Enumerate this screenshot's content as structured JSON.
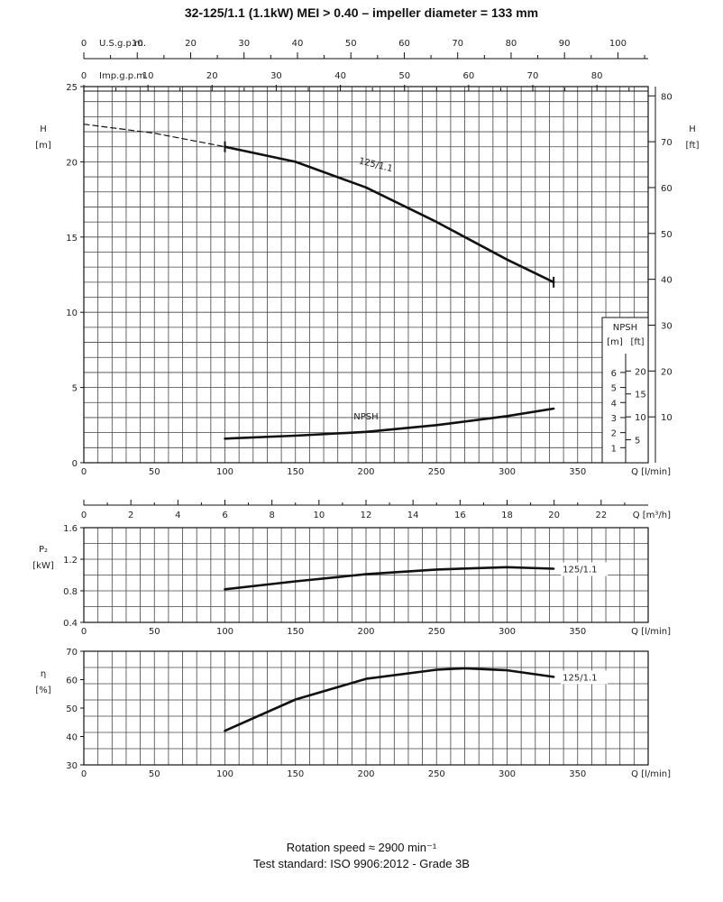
{
  "title": "32-125/1.1 (1.1kW) MEI > 0.40 – impeller diameter = 133 mm",
  "footer": {
    "rotation": "Rotation speed ≈ 2900 min⁻¹",
    "standard": "Test standard: ISO 9906:2012 - Grade 3B"
  },
  "chart_data": [
    {
      "id": "head",
      "type": "line",
      "xlabel": "Q [l/min]",
      "ylabel": "H [m]",
      "ylabel_right": "H [ft]",
      "xlim": [
        0,
        400
      ],
      "ylim": [
        0,
        25
      ],
      "x_ticks": [
        0,
        50,
        100,
        150,
        200,
        250,
        300,
        350
      ],
      "y_ticks": [
        0,
        5,
        10,
        15,
        20,
        25
      ],
      "y_right_ticks": [
        10,
        20,
        30,
        40,
        50,
        60,
        70,
        80
      ],
      "grid": true,
      "top_axes": [
        {
          "label": "U.S.g.p.m.",
          "ticks": [
            0,
            10,
            20,
            30,
            40,
            50,
            60,
            70,
            80,
            90,
            100
          ]
        },
        {
          "label": "Imp.g.p.m.",
          "ticks": [
            0,
            10,
            20,
            30,
            40,
            50,
            60,
            70,
            80
          ]
        }
      ],
      "series": [
        {
          "name": "125/1.1",
          "x": [
            100,
            150,
            200,
            250,
            300,
            333
          ],
          "y": [
            21.0,
            20.0,
            18.3,
            16.0,
            13.5,
            12.0
          ],
          "extrapolated": {
            "x": [
              0,
              50,
              100
            ],
            "y": [
              22.5,
              21.9,
              21.0
            ]
          }
        },
        {
          "name": "NPSH",
          "x": [
            100,
            150,
            200,
            250,
            300,
            333
          ],
          "y": [
            1.6,
            1.8,
            2.05,
            2.5,
            3.1,
            3.6
          ]
        }
      ],
      "npsh_inset": {
        "title": "NPSH",
        "units": [
          "[m]",
          "[ft]"
        ],
        "m_ticks": [
          1,
          2,
          3,
          4,
          5,
          6
        ],
        "ft_ticks": [
          5,
          10,
          15,
          20
        ]
      }
    },
    {
      "id": "flow-m3h",
      "type": "axis",
      "xlabel": "Q [m³/h]",
      "ticks": [
        0,
        2,
        4,
        6,
        8,
        10,
        12,
        14,
        16,
        18,
        20,
        22
      ]
    },
    {
      "id": "power",
      "type": "line",
      "xlabel": "Q [l/min]",
      "ylabel": "P₂ [kW]",
      "xlim": [
        0,
        400
      ],
      "ylim": [
        0.4,
        1.6
      ],
      "x_ticks": [
        0,
        50,
        100,
        150,
        200,
        250,
        300,
        350
      ],
      "y_ticks": [
        0.4,
        0.8,
        1.2,
        1.6
      ],
      "grid": true,
      "series": [
        {
          "name": "125/1.1",
          "x": [
            100,
            150,
            200,
            250,
            300,
            333
          ],
          "y": [
            0.82,
            0.92,
            1.01,
            1.07,
            1.1,
            1.08
          ]
        }
      ]
    },
    {
      "id": "efficiency",
      "type": "line",
      "xlabel": "Q [l/min]",
      "ylabel": "η [%]",
      "xlim": [
        0,
        400
      ],
      "ylim": [
        30,
        70
      ],
      "x_ticks": [
        0,
        50,
        100,
        150,
        200,
        250,
        300,
        350
      ],
      "y_ticks": [
        30,
        40,
        50,
        60,
        70
      ],
      "grid": true,
      "series": [
        {
          "name": "125/1.1",
          "x": [
            100,
            150,
            200,
            250,
            270,
            300,
            333
          ],
          "y": [
            42,
            53,
            60.3,
            63.5,
            64,
            63.3,
            61
          ]
        }
      ]
    }
  ]
}
